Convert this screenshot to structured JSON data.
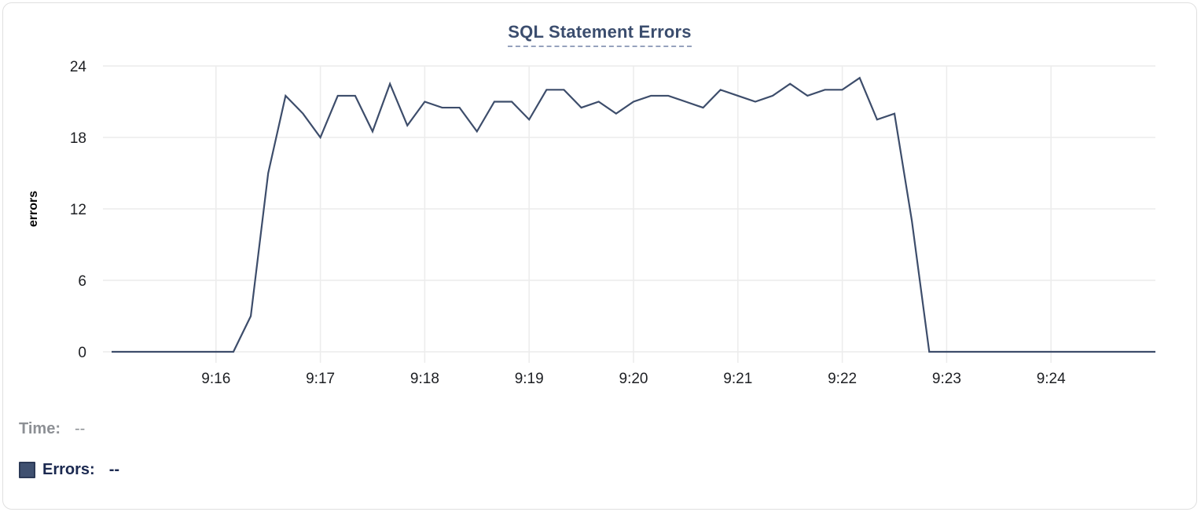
{
  "card": {
    "title": "SQL Statement Errors"
  },
  "tooltip_readout": {
    "time_label": "Time:",
    "time_value": "--",
    "errors_label": "Errors:",
    "errors_value": "--"
  },
  "colors": {
    "line": "#3d4d6b",
    "title": "#3b4d6e",
    "title_underline": "#96a2bd",
    "grid": "#ececec",
    "tick_text": "#1d1f23",
    "legend_time_text": "#8d9095",
    "legend_errors_text": "#1b2950",
    "swatch_fill": "#3f5070",
    "swatch_border": "#2c3a57",
    "card_border": "#e0e0e0"
  },
  "chart_data": {
    "type": "line",
    "title": "SQL Statement Errors",
    "xlabel": "",
    "ylabel": "errors",
    "ylim": [
      0,
      24
    ],
    "y_ticks": [
      0,
      6,
      12,
      18,
      24
    ],
    "x_tick_labels": [
      "9:16",
      "9:17",
      "9:18",
      "9:19",
      "9:20",
      "9:21",
      "9:22",
      "9:23",
      "9:24"
    ],
    "grid": true,
    "legend_position": "below-left",
    "series": [
      {
        "name": "Errors",
        "color": "#3d4d6b",
        "x": [
          "9:15:00",
          "9:15:10",
          "9:15:20",
          "9:15:30",
          "9:15:40",
          "9:15:50",
          "9:16:00",
          "9:16:10",
          "9:16:20",
          "9:16:30",
          "9:16:40",
          "9:16:50",
          "9:17:00",
          "9:17:10",
          "9:17:20",
          "9:17:30",
          "9:17:40",
          "9:17:50",
          "9:18:00",
          "9:18:10",
          "9:18:20",
          "9:18:30",
          "9:18:40",
          "9:18:50",
          "9:19:00",
          "9:19:10",
          "9:19:20",
          "9:19:30",
          "9:19:40",
          "9:19:50",
          "9:20:00",
          "9:20:10",
          "9:20:20",
          "9:20:30",
          "9:20:40",
          "9:20:50",
          "9:21:00",
          "9:21:10",
          "9:21:20",
          "9:21:30",
          "9:21:40",
          "9:21:50",
          "9:22:00",
          "9:22:10",
          "9:22:20",
          "9:22:30",
          "9:22:40",
          "9:22:50",
          "9:23:00",
          "9:23:10",
          "9:23:20",
          "9:23:30",
          "9:23:40",
          "9:23:50",
          "9:24:00",
          "9:24:10",
          "9:24:20",
          "9:24:30",
          "9:24:40",
          "9:24:50",
          "9:25:00"
        ],
        "values": [
          0,
          0,
          0,
          0,
          0,
          0,
          0,
          0,
          3,
          15,
          21.5,
          20,
          18,
          21.5,
          21.5,
          18.5,
          22.5,
          19,
          21,
          20.5,
          20.5,
          18.5,
          21,
          21,
          19.5,
          22,
          22,
          20.5,
          21,
          20,
          21,
          21.5,
          21.5,
          21,
          20.5,
          22,
          21.5,
          21,
          21.5,
          22.5,
          21.5,
          22,
          22,
          23,
          19.5,
          20,
          11,
          0,
          0,
          0,
          0,
          0,
          0,
          0,
          0,
          0,
          0,
          0,
          0,
          0,
          0
        ]
      }
    ]
  }
}
